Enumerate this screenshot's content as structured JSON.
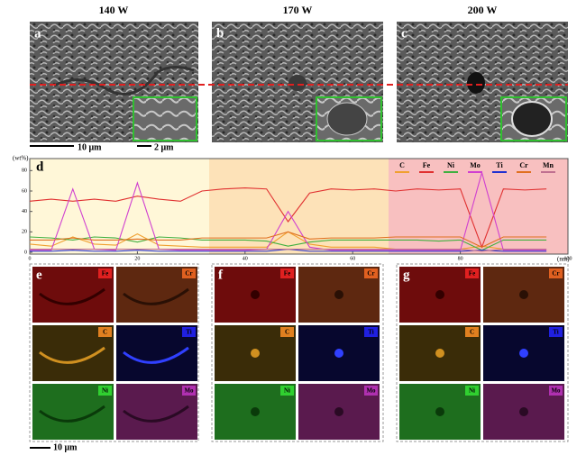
{
  "figure": {
    "powers": [
      "140 W",
      "170 W",
      "200 W"
    ],
    "sem_labels": [
      "a",
      "b",
      "c"
    ],
    "scale_bars": [
      "10 μm",
      "2 μm"
    ],
    "linescan_label": "d",
    "map_labels": [
      "e",
      "f",
      "g"
    ],
    "elements": [
      "Fe",
      "Cr",
      "C",
      "Ti",
      "Ni",
      "Mo"
    ],
    "map_scale": "10 μm"
  },
  "chart_data": {
    "type": "line",
    "y_label": "(wt%)",
    "x_label": "(nm)",
    "x": [
      0,
      4,
      8,
      12,
      16,
      20,
      24,
      28,
      32,
      36,
      40,
      44,
      48,
      52,
      56,
      60,
      64,
      68,
      72,
      76,
      80,
      84,
      88,
      92,
      96
    ],
    "xlim": [
      0,
      100
    ],
    "xticks": [
      0,
      20,
      40,
      60,
      80,
      100
    ],
    "ylim": [
      0,
      90
    ],
    "yticks": [
      0,
      20,
      40,
      60,
      80
    ],
    "series": [
      {
        "name": "C",
        "color": "#f0a030",
        "values": [
          8,
          6,
          15,
          8,
          7,
          18,
          7,
          6,
          5,
          5,
          5,
          5,
          20,
          8,
          5,
          5,
          5,
          3,
          3,
          3,
          3,
          6,
          3,
          3,
          3
        ]
      },
      {
        "name": "Fe",
        "color": "#e03030",
        "values": [
          50,
          52,
          50,
          52,
          50,
          55,
          52,
          50,
          60,
          62,
          63,
          62,
          30,
          58,
          62,
          61,
          62,
          60,
          62,
          61,
          62,
          5,
          62,
          61,
          62
        ]
      },
      {
        "name": "Ni",
        "color": "#40b040",
        "values": [
          15,
          14,
          12,
          15,
          14,
          10,
          15,
          14,
          12,
          12,
          12,
          11,
          6,
          10,
          12,
          12,
          12,
          12,
          12,
          11,
          12,
          2,
          12,
          12,
          12
        ]
      },
      {
        "name": "Mo",
        "color": "#d040d0",
        "values": [
          2,
          2,
          62,
          3,
          2,
          68,
          3,
          2,
          2,
          2,
          2,
          3,
          40,
          5,
          2,
          2,
          2,
          2,
          2,
          2,
          2,
          78,
          2,
          2,
          2
        ]
      },
      {
        "name": "Ti",
        "color": "#2030d0",
        "values": [
          1,
          1,
          2,
          1,
          1,
          2,
          1,
          1,
          1,
          1,
          1,
          1,
          3,
          1,
          1,
          1,
          1,
          1,
          1,
          1,
          1,
          2,
          1,
          1,
          1
        ]
      },
      {
        "name": "Cr",
        "color": "#e07020",
        "values": [
          12,
          12,
          14,
          12,
          12,
          13,
          12,
          12,
          14,
          14,
          14,
          14,
          20,
          13,
          14,
          14,
          14,
          15,
          15,
          15,
          15,
          5,
          15,
          15,
          15
        ]
      },
      {
        "name": "Mn",
        "color": "#c07090",
        "values": [
          3,
          3,
          3,
          3,
          3,
          3,
          3,
          3,
          3,
          3,
          3,
          3,
          3,
          3,
          3,
          3,
          3,
          3,
          3,
          3,
          3,
          1,
          3,
          3,
          3
        ]
      }
    ]
  }
}
